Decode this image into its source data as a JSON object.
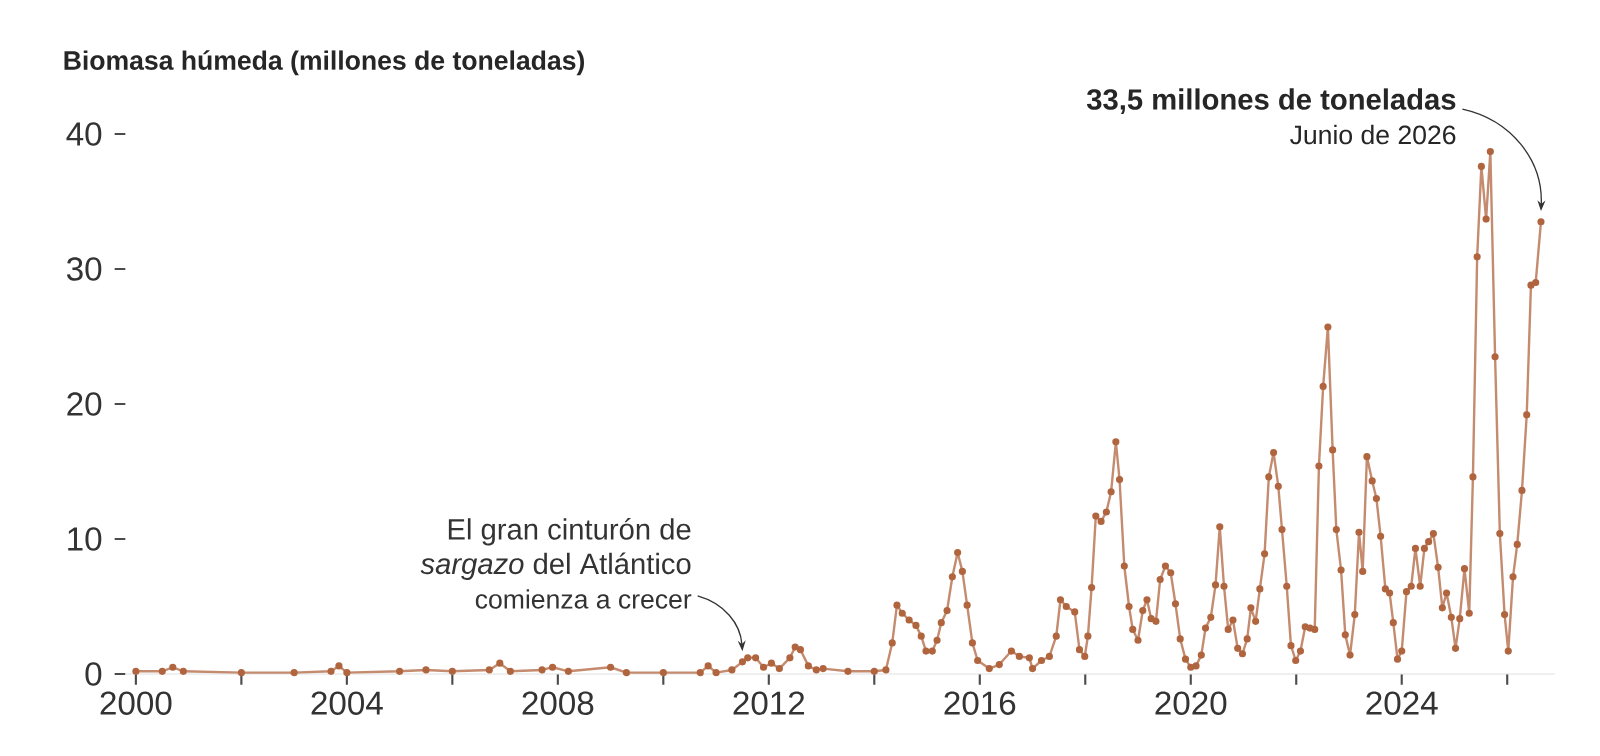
{
  "chart_data": {
    "type": "line",
    "ylabel": "Biomasa húmeda (millones de toneladas)",
    "xlim": [
      1999.8,
      2026.9
    ],
    "ylim": [
      0,
      40
    ],
    "xticks": [
      2000,
      {
        "value": 2002,
        "label": null
      },
      2004,
      {
        "value": 2006,
        "label": null
      },
      2008,
      {
        "value": 2010,
        "label": null
      },
      2012,
      {
        "value": 2014,
        "label": null
      },
      2016,
      {
        "value": 2018,
        "label": null
      },
      2020,
      {
        "value": 2022,
        "label": null
      },
      2024,
      {
        "value": 2026,
        "label": null
      }
    ],
    "yticks": [
      0,
      10,
      20,
      30,
      40
    ],
    "marker": "circle",
    "line_style": "solid",
    "series": [
      {
        "color": "#b0653f",
        "x": [
          2000.0,
          2000.5,
          2000.7,
          2000.9,
          2002.0,
          2003.0,
          2003.7,
          2003.85,
          2004.0,
          2005.0,
          2005.5,
          2006.0,
          2006.7,
          2006.9,
          2007.1,
          2007.7,
          2007.9,
          2008.2,
          2009.0,
          2009.3,
          2010.0,
          2010.7,
          2010.85,
          2011.0,
          2011.3,
          2011.5,
          2011.6,
          2011.75,
          2011.9,
          2012.05,
          2012.2,
          2012.4,
          2012.5,
          2012.6,
          2012.75,
          2012.9,
          2013.03,
          2013.5,
          2014.0,
          2014.22,
          2014.34,
          2014.43,
          2014.53,
          2014.66,
          2014.79,
          2014.89,
          2014.98,
          2015.1,
          2015.19,
          2015.27,
          2015.38,
          2015.48,
          2015.58,
          2015.67,
          2015.76,
          2015.86,
          2015.96,
          2016.18,
          2016.37,
          2016.6,
          2016.75,
          2016.94,
          2017.0,
          2017.17,
          2017.32,
          2017.45,
          2017.53,
          2017.64,
          2017.8,
          2017.89,
          2017.99,
          2018.05,
          2018.12,
          2018.2,
          2018.3,
          2018.4,
          2018.49,
          2018.58,
          2018.65,
          2018.74,
          2018.83,
          2018.9,
          2019.0,
          2019.09,
          2019.17,
          2019.25,
          2019.34,
          2019.42,
          2019.52,
          2019.62,
          2019.71,
          2019.8,
          2019.9,
          2020.0,
          2020.1,
          2020.2,
          2020.28,
          2020.38,
          2020.47,
          2020.55,
          2020.63,
          2020.71,
          2020.8,
          2020.89,
          2020.98,
          2021.07,
          2021.14,
          2021.23,
          2021.31,
          2021.4,
          2021.48,
          2021.57,
          2021.66,
          2021.73,
          2021.82,
          2021.9,
          2021.99,
          2022.08,
          2022.17,
          2022.26,
          2022.35,
          2022.43,
          2022.51,
          2022.6,
          2022.69,
          2022.76,
          2022.85,
          2022.93,
          2023.02,
          2023.11,
          2023.19,
          2023.26,
          2023.34,
          2023.44,
          2023.52,
          2023.6,
          2023.69,
          2023.77,
          2023.84,
          2023.92,
          2024.0,
          2024.09,
          2024.18,
          2024.26,
          2024.35,
          2024.43,
          2024.51,
          2024.6,
          2024.69,
          2024.77,
          2024.85,
          2024.94,
          2025.02,
          2025.1,
          2025.19,
          2025.28,
          2025.35,
          2025.43,
          2025.51,
          2025.6,
          2025.68,
          2025.77,
          2025.86,
          2025.95,
          2026.02,
          2026.11,
          2026.19,
          2026.28,
          2026.37,
          2026.45,
          2026.54,
          2026.64
        ],
        "values": [
          0.2,
          0.2,
          0.5,
          0.2,
          0.1,
          0.1,
          0.2,
          0.6,
          0.1,
          0.2,
          0.3,
          0.2,
          0.3,
          0.8,
          0.2,
          0.3,
          0.5,
          0.2,
          0.5,
          0.1,
          0.1,
          0.1,
          0.6,
          0.1,
          0.3,
          0.9,
          1.2,
          1.2,
          0.5,
          0.8,
          0.4,
          1.2,
          2.0,
          1.8,
          0.6,
          0.3,
          0.4,
          0.2,
          0.2,
          0.3,
          2.3,
          5.1,
          4.5,
          4.0,
          3.6,
          2.8,
          1.7,
          1.7,
          2.5,
          3.8,
          4.7,
          7.2,
          9.0,
          7.6,
          5.1,
          2.3,
          1.0,
          0.4,
          0.7,
          1.7,
          1.3,
          1.2,
          0.4,
          1.0,
          1.3,
          2.8,
          5.5,
          5.0,
          4.6,
          1.8,
          1.3,
          2.8,
          6.4,
          11.7,
          11.3,
          12.0,
          13.5,
          17.2,
          14.4,
          8.0,
          5.0,
          3.3,
          2.5,
          4.7,
          5.5,
          4.1,
          3.9,
          7.0,
          8.0,
          7.5,
          5.2,
          2.6,
          1.1,
          0.5,
          0.6,
          1.4,
          3.4,
          4.2,
          6.6,
          10.9,
          6.5,
          3.3,
          4.0,
          1.9,
          1.5,
          2.6,
          4.9,
          3.9,
          6.3,
          8.9,
          14.6,
          16.4,
          13.9,
          10.7,
          6.5,
          2.1,
          1.0,
          1.7,
          3.5,
          3.4,
          3.3,
          15.4,
          21.3,
          25.7,
          16.6,
          10.7,
          7.7,
          2.9,
          1.4,
          4.4,
          10.5,
          7.6,
          16.1,
          14.3,
          13.0,
          10.2,
          6.3,
          6.0,
          3.8,
          1.1,
          1.7,
          6.1,
          6.5,
          9.3,
          6.5,
          9.3,
          9.8,
          10.4,
          7.9,
          4.9,
          6.0,
          4.2,
          1.9,
          4.1,
          7.8,
          4.5,
          14.6,
          30.9,
          37.6,
          33.7,
          38.7,
          23.5,
          10.4,
          4.4,
          1.7,
          7.2,
          9.6,
          13.6,
          19.2,
          28.8,
          29.0,
          33.5
        ]
      }
    ],
    "annotations": [
      "El gran cinturón de",
      "*sargazo* del Atlántico",
      {
        "text": "comienza a crecer",
        "x": 2011.5,
        "y": 0.9
      },
      {
        "text": "33,5 millones de toneladas",
        "x": 2026.64,
        "y": 33.5
      },
      "Junio de 2026"
    ]
  }
}
